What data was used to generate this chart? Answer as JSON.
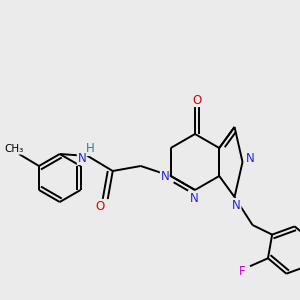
{
  "bg_color": "#ebebeb",
  "atom_colors": {
    "C": "#000000",
    "N": "#2222dd",
    "O": "#dd0000",
    "F": "#cc00cc",
    "H": "#228888"
  },
  "bond_color": "#000000",
  "bond_width": 1.4,
  "font_size": 8.5
}
